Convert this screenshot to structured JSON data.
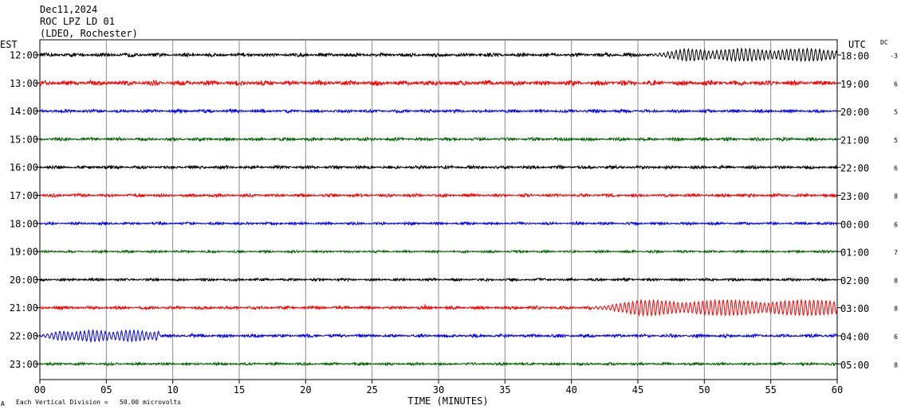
{
  "header": {
    "date": "Dec11,2024",
    "station": "ROC LPZ LD 01",
    "network": "(LDEO, Rochester)"
  },
  "left_tz_label": "EST",
  "right_tz_label": "UTC",
  "dc_label": "DC",
  "footer_note": "Each Vertical Division =   50.00 microvolts",
  "footer_mark": "A",
  "colors": {
    "c1": "#000000",
    "c2": "#ff0000",
    "c3": "#0000ff",
    "c4": "#006400"
  },
  "chart_data": {
    "type": "line",
    "xlabel": "TIME (MINUTES)",
    "xlim": [
      0,
      60
    ],
    "xtick_values": [
      0,
      5,
      10,
      15,
      20,
      25,
      30,
      35,
      40,
      45,
      50,
      55,
      60
    ],
    "xtick_labels": [
      "00",
      "05",
      "10",
      "15",
      "20",
      "25",
      "30",
      "35",
      "40",
      "45",
      "50",
      "55",
      "60"
    ],
    "series": [
      {
        "left_label": "12:00",
        "right_label": "18:00",
        "dc": "-3",
        "color": "#000000",
        "amplitude": 0.35,
        "events": [
          {
            "start": 46,
            "end": 60,
            "amplitude": 1.0
          }
        ]
      },
      {
        "left_label": "13:00",
        "right_label": "19:00",
        "dc": "6",
        "color": "#ff0000",
        "amplitude": 0.45,
        "events": []
      },
      {
        "left_label": "14:00",
        "right_label": "20:00",
        "dc": "5",
        "color": "#0000ff",
        "amplitude": 0.3,
        "events": []
      },
      {
        "left_label": "15:00",
        "right_label": "21:00",
        "dc": "5",
        "color": "#006400",
        "amplitude": 0.3,
        "events": []
      },
      {
        "left_label": "16:00",
        "right_label": "22:00",
        "dc": "6",
        "color": "#000000",
        "amplitude": 0.3,
        "events": []
      },
      {
        "left_label": "17:00",
        "right_label": "23:00",
        "dc": "8",
        "color": "#ff0000",
        "amplitude": 0.3,
        "events": []
      },
      {
        "left_label": "18:00",
        "right_label": "00:00",
        "dc": "6",
        "color": "#0000ff",
        "amplitude": 0.25,
        "events": []
      },
      {
        "left_label": "19:00",
        "right_label": "01:00",
        "dc": "7",
        "color": "#006400",
        "amplitude": 0.22,
        "events": []
      },
      {
        "left_label": "20:00",
        "right_label": "02:00",
        "dc": "8",
        "color": "#000000",
        "amplitude": 0.25,
        "events": []
      },
      {
        "left_label": "21:00",
        "right_label": "03:00",
        "dc": "8",
        "color": "#ff0000",
        "amplitude": 0.3,
        "events": [
          {
            "start": 41.5,
            "end": 60,
            "amplitude": 1.3
          }
        ]
      },
      {
        "left_label": "22:00",
        "right_label": "04:00",
        "dc": "6",
        "color": "#0000ff",
        "amplitude": 0.3,
        "events": [
          {
            "start": 0,
            "end": 9,
            "amplitude": 0.9
          }
        ]
      },
      {
        "left_label": "23:00",
        "right_label": "05:00",
        "dc": "8",
        "color": "#006400",
        "amplitude": 0.25,
        "events": []
      }
    ]
  }
}
